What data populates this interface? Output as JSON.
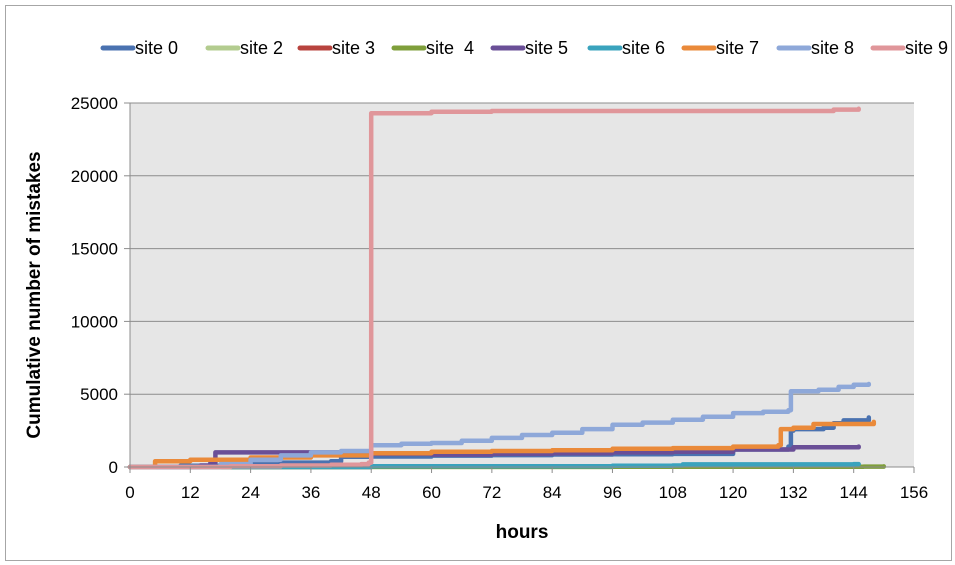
{
  "chart_data": {
    "type": "line",
    "title": "",
    "xlabel": "hours",
    "ylabel": "Cumulative number of mistakes",
    "xlim": [
      0,
      156
    ],
    "ylim": [
      0,
      25000
    ],
    "xticks": [
      0,
      12,
      24,
      36,
      48,
      60,
      72,
      84,
      96,
      108,
      120,
      132,
      144,
      156
    ],
    "yticks": [
      0,
      5000,
      10000,
      15000,
      20000,
      25000
    ],
    "grid": "horizontal",
    "plot_background": "#e6e6e6",
    "legend_position": "top",
    "series": [
      {
        "name": "site 0",
        "color": "#4a72b0",
        "x": [
          0,
          10,
          20,
          30,
          40,
          42,
          48,
          60,
          72,
          84,
          96,
          108,
          120,
          131,
          131.5,
          132,
          138,
          140,
          142,
          147
        ],
        "y": [
          0,
          80,
          180,
          300,
          400,
          700,
          720,
          780,
          820,
          860,
          880,
          900,
          1200,
          1400,
          2500,
          2600,
          2700,
          3000,
          3200,
          3400
        ]
      },
      {
        "name": "site 2",
        "color": "#b3cc8f",
        "x": [
          0,
          48,
          96,
          144
        ],
        "y": [
          0,
          10,
          20,
          30
        ]
      },
      {
        "name": "site 3",
        "color": "#b8433e",
        "x": [
          0,
          48,
          96,
          144
        ],
        "y": [
          0,
          20,
          40,
          60
        ]
      },
      {
        "name": "site  4",
        "color": "#7f9f3b",
        "x": [
          0,
          48,
          96,
          146,
          150
        ],
        "y": [
          0,
          10,
          20,
          30,
          40
        ]
      },
      {
        "name": "site 5",
        "color": "#6a4f97",
        "x": [
          0,
          14,
          16,
          17,
          36,
          48,
          60,
          72,
          84,
          96,
          108,
          120,
          132,
          145
        ],
        "y": [
          0,
          100,
          300,
          1000,
          1000,
          900,
          850,
          900,
          950,
          1000,
          1050,
          1200,
          1350,
          1400
        ]
      },
      {
        "name": "site 6",
        "color": "#3aa3bd",
        "x": [
          0,
          48,
          96,
          108,
          110,
          144,
          145
        ],
        "y": [
          0,
          50,
          80,
          100,
          180,
          200,
          200
        ]
      },
      {
        "name": "site 7",
        "color": "#ea8a3a",
        "x": [
          0,
          5,
          12,
          24,
          36,
          48,
          60,
          72,
          84,
          96,
          108,
          120,
          129,
          129.5,
          132,
          136,
          148
        ],
        "y": [
          0,
          400,
          500,
          650,
          800,
          950,
          1050,
          1100,
          1150,
          1250,
          1300,
          1400,
          1500,
          2600,
          2700,
          2950,
          3100
        ]
      },
      {
        "name": "site 8",
        "color": "#8ea8d9",
        "x": [
          0,
          18,
          24,
          30,
          36,
          42,
          48,
          54,
          60,
          66,
          72,
          78,
          84,
          90,
          96,
          102,
          108,
          114,
          120,
          126,
          131,
          131.5,
          137,
          141,
          144,
          147
        ],
        "y": [
          0,
          200,
          500,
          800,
          1000,
          1100,
          1500,
          1600,
          1650,
          1800,
          2000,
          2200,
          2350,
          2600,
          2900,
          3050,
          3250,
          3450,
          3700,
          3800,
          3900,
          5200,
          5300,
          5500,
          5650,
          5700
        ]
      },
      {
        "name": "site 9",
        "color": "#e0969a",
        "x": [
          0,
          20,
          30,
          40,
          46,
          47.5,
          48,
          52,
          60,
          72,
          96,
          120,
          132,
          138,
          140,
          145
        ],
        "y": [
          0,
          50,
          100,
          150,
          200,
          300,
          24300,
          24300,
          24400,
          24450,
          24450,
          24450,
          24450,
          24450,
          24550,
          24600
        ]
      }
    ]
  }
}
